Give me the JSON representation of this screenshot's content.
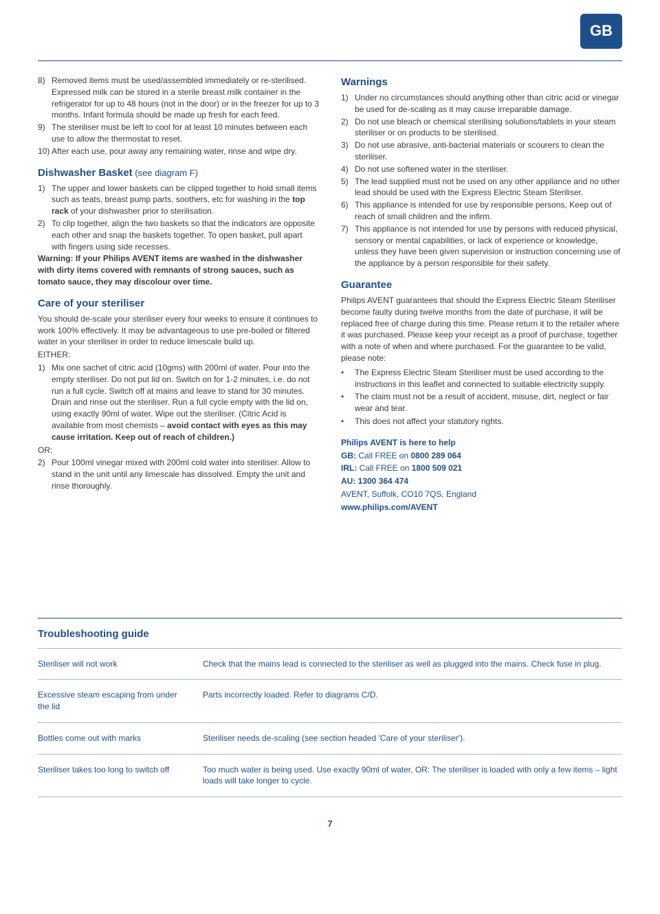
{
  "badge": "GB",
  "page_number": "7",
  "col1": {
    "items_8_10": [
      {
        "n": "8)",
        "t": "Removed items must be used/assembled immediately or re-sterilised. Expressed milk can be stored in a sterile breast milk container in the refrigerator for up to 48 hours (not in the door) or in the freezer for up to 3 months. Infant formula should be made up fresh for each feed."
      },
      {
        "n": "9)",
        "t": "The steriliser must be left to cool for at least 10 minutes between each use to allow the thermostat to reset."
      }
    ],
    "item_10": "10) After each use, pour away any remaining water, rinse and wipe dry.",
    "dishwasher_title": "Dishwasher Basket",
    "dishwasher_note": " (see diagram F)",
    "dishwasher_items": [
      {
        "n": "1)",
        "t": "The upper and lower baskets can be clipped together to hold small items such as teats, breast pump parts, soothers, etc for washing in the ",
        "bold": "top rack",
        "after": " of your dishwasher prior to sterilisation."
      },
      {
        "n": "2)",
        "t": "To clip together, align the two baskets so that the indicators are opposite each other and snap the baskets together. To open basket, pull apart with fingers using side recesses."
      }
    ],
    "dishwasher_warning": "Warning: If your Philips AVENT items are washed in the dishwasher with dirty items covered with remnants of strong sauces, such as tomato sauce, they may discolour over time.",
    "care_title": "Care of your steriliser",
    "care_intro": "You should de-scale your steriliser every four weeks to ensure it continues to work 100% effectively. It may be advantageous to use pre-boiled or filtered water in your steriliser in order to reduce limescale build up.",
    "either": "EITHER:",
    "care_method1_n": "1)",
    "care_method1": "Mix one sachet of citric acid (10gms) with 200ml of water. Pour into the empty steriliser. Do not put lid on. Switch on for 1-2 minutes, i.e. do not run a full cycle. Switch off at mains and leave to stand for 30 minutes. Drain and rinse out the steriliser. Run a full cycle empty with the lid on, using exactly 90ml of water. Wipe out the steriliser. (Citric Acid is available from most chemists – ",
    "care_method1_bold": "avoid contact with eyes as this may cause irritation. Keep out of reach of children.)",
    "or": "OR:",
    "care_method2_n": "2)",
    "care_method2": "Pour 100ml vinegar mixed with 200ml cold water into steriliser. Allow to stand in the unit until any limescale has dissolved. Empty the unit and rinse thoroughly."
  },
  "col2": {
    "warnings_title": "Warnings",
    "warnings": [
      {
        "n": "1)",
        "t": "Under no circumstances should anything other than citric acid or vinegar be used for de-scaling as it may cause irreparable damage."
      },
      {
        "n": "2)",
        "t": "Do not use bleach or chemical sterilising solutions/tablets in your steam steriliser or on products to be sterilised."
      },
      {
        "n": "3)",
        "t": "Do not use abrasive, anti-bacterial materials or scourers to clean the steriliser."
      },
      {
        "n": "4)",
        "t": "Do not use softened water in the steriliser."
      },
      {
        "n": "5)",
        "t": "The lead supplied must not be used on any other appliance and no other lead should be used with the Express Electric Steam Steriliser."
      },
      {
        "n": "6)",
        "t": "This appliance is intended for use by responsible persons, Keep out of reach of small children and the infirm."
      },
      {
        "n": "7)",
        "t": "This appliance is not intended for use by persons with reduced physical, sensory or mental capabilities, or lack of experience or knowledge, unless they have been given supervision or instruction concerning use of the appliance by a person responsible for their safety."
      }
    ],
    "guarantee_title": "Guarantee",
    "guarantee_body": "Philips AVENT guarantees that should the Express Electric Steam Steriliser become faulty during twelve months from the date of purchase, it will be replaced free of charge during this time. Please return it to the retailer where it was purchased. Please keep your receipt as a proof of purchase, together with a note of when and where purchased. For the guarantee to be valid, please note:",
    "guarantee_bullets": [
      "The Express Electric Steam Steriliser must be used according to the instructions in this leaflet and connected to suitable electricity supply.",
      "The claim must not be a result of accident, misuse, dirt, neglect or fair wear and tear.",
      "This does not affect your statutory rights."
    ],
    "contact_header": "Philips AVENT is here to help",
    "contact_gb_label": "GB:",
    "contact_gb": " Call FREE on ",
    "contact_gb_num": "0800 289 064",
    "contact_irl_label": "IRL:",
    "contact_irl": " Call FREE on ",
    "contact_irl_num": "1800 509 021",
    "contact_au_label": "AU: 1300 364 474",
    "contact_addr": "AVENT, Suffolk, CO10 7QS, England",
    "contact_web": "www.philips.com/AVENT"
  },
  "troubleshooting": {
    "title": "Troubleshooting guide",
    "rows": [
      {
        "problem": "Steriliser will not work",
        "solution": "Check that the mains lead is connected to the steriliser as well as plugged into the mains. Check fuse in plug."
      },
      {
        "problem": "Excessive steam escaping from under the lid",
        "solution": "Parts incorrectly loaded. Refer to diagrams C/D."
      },
      {
        "problem": "Bottles come out with marks",
        "solution": "Steriliser needs de-scaling (see section headed 'Care of your steriliser')."
      },
      {
        "problem": "Steriliser takes too long to switch off",
        "solution": "Too much water is being used. Use exactly 90ml of water, OR: The steriliser is loaded with only a few items – light loads will take longer to cycle."
      }
    ]
  },
  "colors": {
    "brand": "#1d4f8b",
    "text": "#3a3a3a",
    "rule": "#a8b8cc"
  }
}
